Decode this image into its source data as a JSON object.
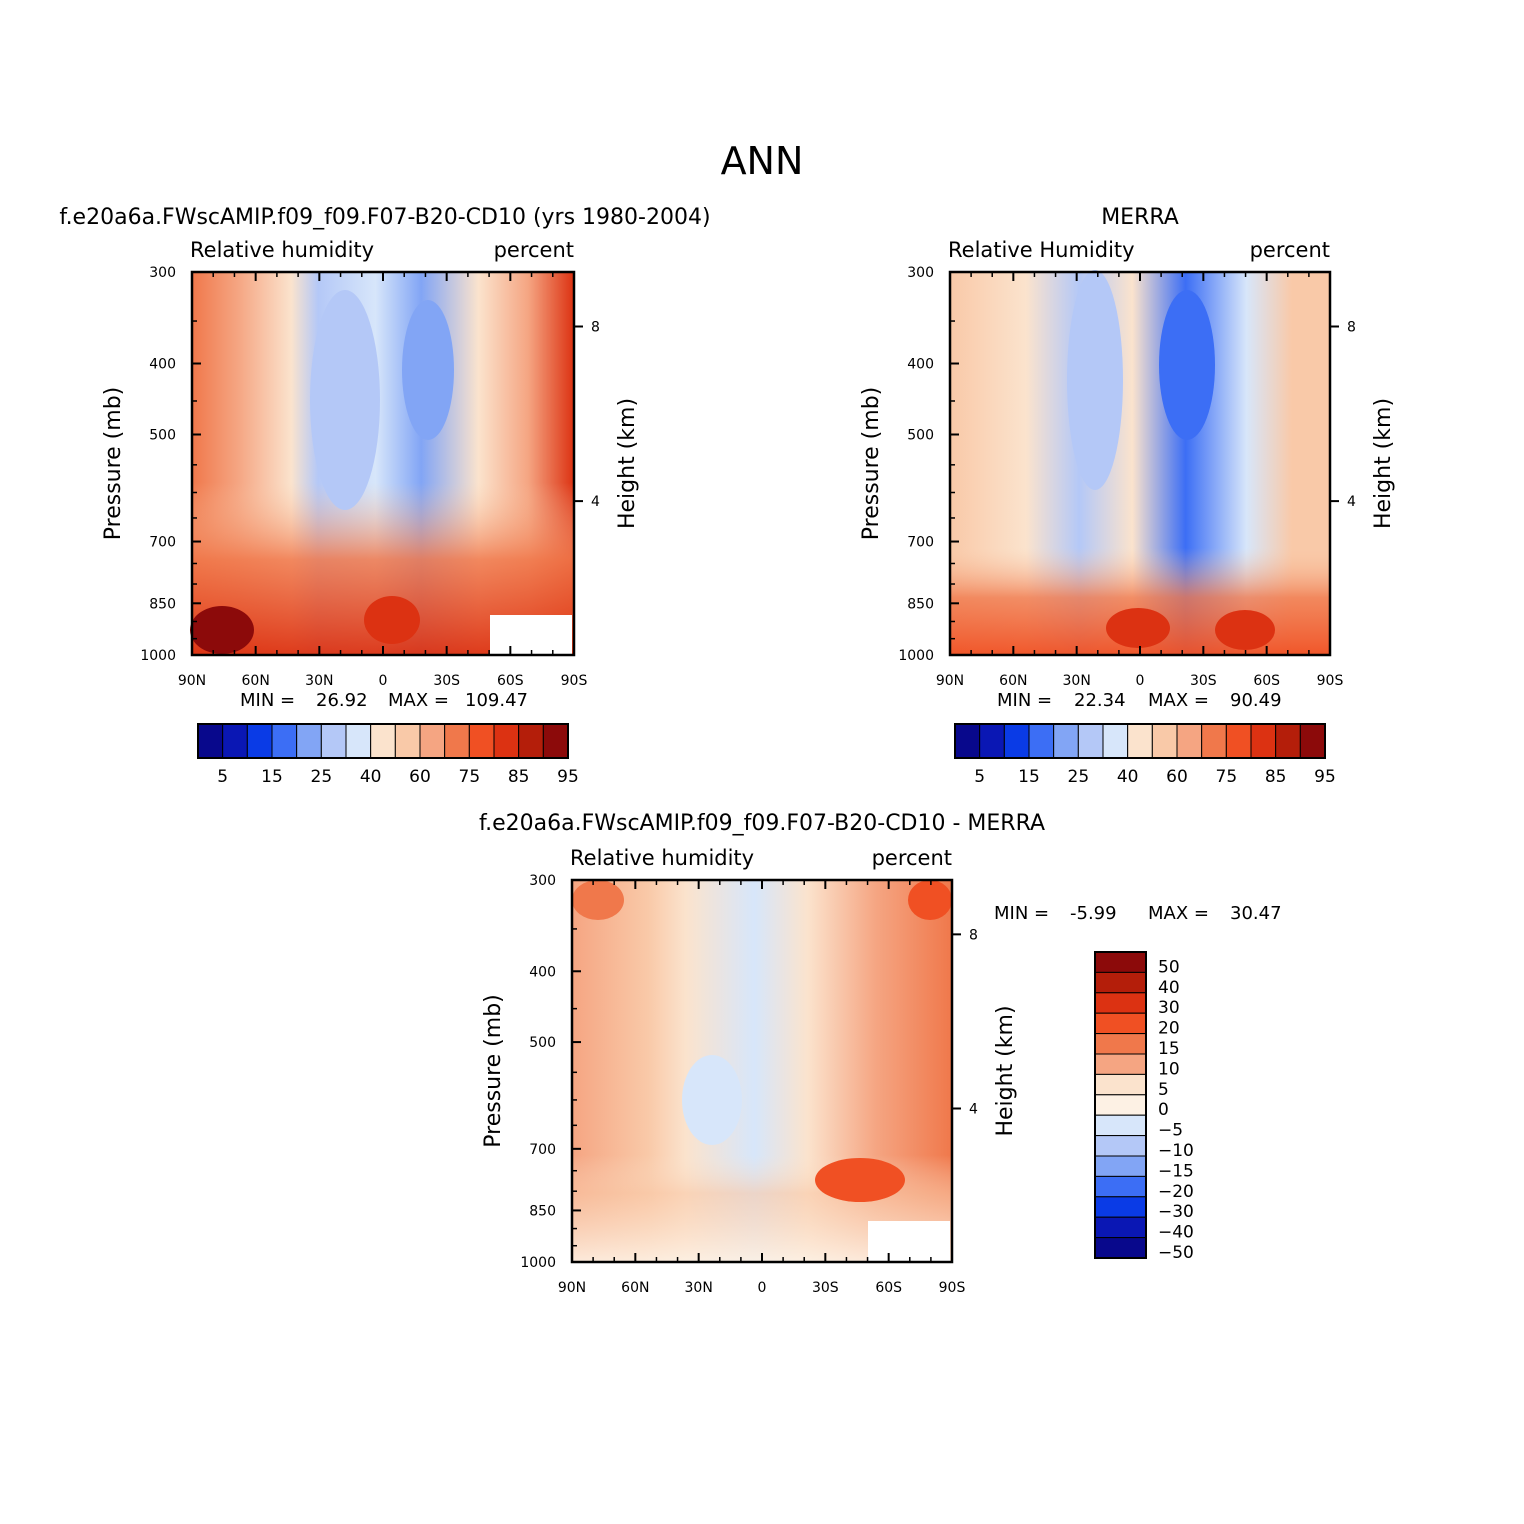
{
  "page_title": "ANN",
  "chart_data": [
    {
      "type": "heatmap",
      "title": "f.e20a6a.FWscAMIP.f09_f09.F07-B20-CD10 (yrs 1980-2004)",
      "left_label": "Relative humidity",
      "right_label": "percent",
      "xlabel": "",
      "ylabel": "Pressure (mb)",
      "ylabel_right": "Height (km)",
      "x_ticks": [
        "90N",
        "60N",
        "30N",
        "0",
        "30S",
        "60S",
        "90S"
      ],
      "y_ticks": [
        "300",
        "400",
        "500",
        "700",
        "850",
        "1000"
      ],
      "y_right_ticks": [
        "8",
        "4"
      ],
      "stats": {
        "min_label": "MIN =",
        "min": "26.92",
        "max_label": "MAX =",
        "max": "109.47"
      },
      "colorbar_labels": [
        "5",
        "15",
        "25",
        "40",
        "60",
        "75",
        "85",
        "95"
      ]
    },
    {
      "type": "heatmap",
      "title": "MERRA",
      "left_label": "Relative Humidity",
      "right_label": "percent",
      "xlabel": "",
      "ylabel": "Pressure (mb)",
      "ylabel_right": "Height (km)",
      "x_ticks": [
        "90N",
        "60N",
        "30N",
        "0",
        "30S",
        "60S",
        "90S"
      ],
      "y_ticks": [
        "300",
        "400",
        "500",
        "700",
        "850",
        "1000"
      ],
      "y_right_ticks": [
        "8",
        "4"
      ],
      "stats": {
        "min_label": "MIN =",
        "min": "22.34",
        "max_label": "MAX =",
        "max": "90.49"
      },
      "colorbar_labels": [
        "5",
        "15",
        "25",
        "40",
        "60",
        "75",
        "85",
        "95"
      ]
    },
    {
      "type": "heatmap",
      "title": "f.e20a6a.FWscAMIP.f09_f09.F07-B20-CD10 - MERRA",
      "left_label": "Relative humidity",
      "right_label": "percent",
      "xlabel": "",
      "ylabel": "Pressure (mb)",
      "ylabel_right": "Height (km)",
      "x_ticks": [
        "90N",
        "60N",
        "30N",
        "0",
        "30S",
        "60S",
        "90S"
      ],
      "y_ticks": [
        "300",
        "400",
        "500",
        "700",
        "850",
        "1000"
      ],
      "y_right_ticks": [
        "8",
        "4"
      ],
      "stats": {
        "min_label": "MIN =",
        "min": "-5.99",
        "max_label": "MAX =",
        "max": "30.47"
      },
      "colorbar_labels": [
        "50",
        "40",
        "30",
        "20",
        "15",
        "10",
        "5",
        "0",
        "-5",
        "-10",
        "-15",
        "-20",
        "-30",
        "-40",
        "-50"
      ]
    }
  ],
  "palette": {
    "abs": [
      "#08088c",
      "#0a17b4",
      "#0a3be6",
      "#3c6ef5",
      "#82a5f5",
      "#b4c8f7",
      "#d7e6fa",
      "#fbe3cd",
      "#f9c9a8",
      "#f5a582",
      "#f0784b",
      "#f05023",
      "#dc3212",
      "#b41e0a",
      "#8c0a0a"
    ],
    "diff": [
      "#8c0a0a",
      "#b41e0a",
      "#dc3212",
      "#f05023",
      "#f0784b",
      "#f5a582",
      "#fbe3cd",
      "#fdf1e4",
      "#d7e6fa",
      "#b4c8f7",
      "#82a5f5",
      "#3c6ef5",
      "#0a3be6",
      "#0a17b4",
      "#08088c"
    ]
  }
}
